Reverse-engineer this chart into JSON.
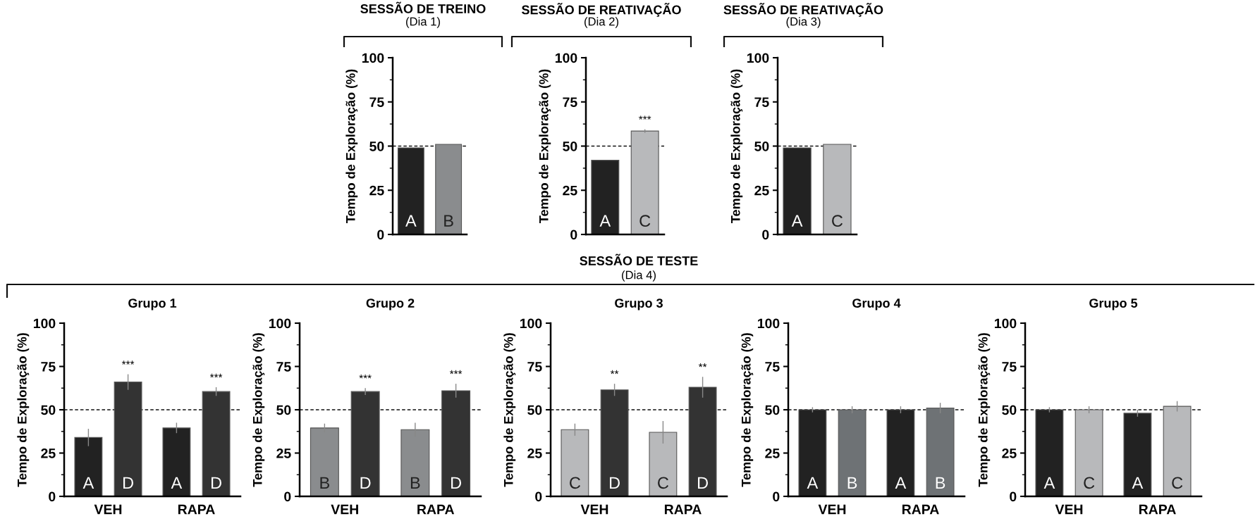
{
  "chart_data": [
    {
      "type": "bar",
      "title": "SESSÃO DE TREINO",
      "subtitle": "(Dia 1)",
      "ylabel": "Tempo de Exploração (%)",
      "categories": [
        null
      ],
      "series": [
        {
          "name": "A",
          "color": "#222222",
          "values": [
            49
          ]
        },
        {
          "name": "B",
          "color": "#8a8c8e",
          "values": [
            51
          ]
        }
      ],
      "ylim": [
        0,
        100
      ],
      "yticks": [
        0,
        25,
        50,
        75,
        100
      ],
      "ref_lines": [
        {
          "axis": "y",
          "value": 50,
          "line_style": "dashed"
        }
      ]
    },
    {
      "type": "bar",
      "title": "SESSÃO DE REATIVAÇÃO",
      "subtitle": "(Dia 2)",
      "ylabel": "Tempo de Exploração (%)",
      "categories": [
        null
      ],
      "series": [
        {
          "name": "A",
          "color": "#222222",
          "values": [
            42
          ]
        },
        {
          "name": "C",
          "color": "#b8b9bb",
          "values": [
            58.5
          ],
          "errors": [
            1
          ],
          "value_labels": [
            "***"
          ]
        }
      ],
      "ylim": [
        0,
        100
      ],
      "yticks": [
        0,
        25,
        50,
        75,
        100
      ],
      "ref_lines": [
        {
          "axis": "y",
          "value": 50,
          "line_style": "dashed"
        }
      ]
    },
    {
      "type": "bar",
      "title": "SESSÃO DE REATIVAÇÃO",
      "subtitle": "(Dia 3)",
      "ylabel": "Tempo de Exploração (%)",
      "categories": [
        null
      ],
      "series": [
        {
          "name": "A",
          "color": "#222222",
          "values": [
            49
          ]
        },
        {
          "name": "C",
          "color": "#b8b9bb",
          "values": [
            51
          ]
        }
      ],
      "ylim": [
        0,
        100
      ],
      "yticks": [
        0,
        25,
        50,
        75,
        100
      ],
      "ref_lines": [
        {
          "axis": "y",
          "value": 50,
          "line_style": "dashed"
        }
      ]
    },
    {
      "type": "bar",
      "title": "Grupo 1",
      "ylabel": "Tempo de Exploração (%)",
      "categories": [
        "VEH",
        "RAPA"
      ],
      "series": [
        {
          "name": "A",
          "color": "#222222",
          "values": [
            34,
            39.5
          ],
          "errors": [
            5,
            3
          ]
        },
        {
          "name": "D",
          "color": "#333333",
          "values": [
            66,
            60.5
          ],
          "errors": [
            4.5,
            2.5
          ],
          "value_labels": [
            "***",
            "***"
          ]
        }
      ],
      "ylim": [
        0,
        100
      ],
      "yticks": [
        0,
        25,
        50,
        75,
        100
      ],
      "ref_lines": [
        {
          "axis": "y",
          "value": 50,
          "line_style": "dashed"
        }
      ]
    },
    {
      "type": "bar",
      "title": "Grupo 2",
      "ylabel": "Tempo de Exploração (%)",
      "categories": [
        "VEH",
        "RAPA"
      ],
      "series": [
        {
          "name": "B",
          "color": "#8a8c8e",
          "values": [
            39.5,
            38.5
          ],
          "errors": [
            2.5,
            4
          ]
        },
        {
          "name": "D",
          "color": "#333333",
          "values": [
            60.5,
            61
          ],
          "errors": [
            2,
            4
          ],
          "value_labels": [
            "***",
            "***"
          ]
        }
      ],
      "ylim": [
        0,
        100
      ],
      "yticks": [
        0,
        25,
        50,
        75,
        100
      ],
      "ref_lines": [
        {
          "axis": "y",
          "value": 50,
          "line_style": "dashed"
        }
      ]
    },
    {
      "type": "bar",
      "title": "Grupo 3",
      "ylabel": "Tempo de Exploração (%)",
      "categories": [
        "VEH",
        "RAPA"
      ],
      "series": [
        {
          "name": "C",
          "color": "#b8b9bb",
          "values": [
            38.5,
            37
          ],
          "errors": [
            3.5,
            6.5
          ]
        },
        {
          "name": "D",
          "color": "#333333",
          "values": [
            61.5,
            63
          ],
          "errors": [
            3.5,
            6
          ],
          "value_labels": [
            "**",
            "**"
          ]
        }
      ],
      "ylim": [
        0,
        100
      ],
      "yticks": [
        0,
        25,
        50,
        75,
        100
      ],
      "ref_lines": [
        {
          "axis": "y",
          "value": 50,
          "line_style": "dashed"
        }
      ],
      "annotations": [
        "SESSÃO DE TESTE",
        "(Dia 4)"
      ]
    },
    {
      "type": "bar",
      "title": "Grupo 4",
      "ylabel": "Tempo de Exploração (%)",
      "categories": [
        "VEH",
        "RAPA"
      ],
      "series": [
        {
          "name": "A",
          "color": "#222222",
          "values": [
            50,
            50
          ],
          "errors": [
            1.5,
            2
          ]
        },
        {
          "name": "B",
          "color": "#6e7275",
          "values": [
            50,
            51
          ],
          "errors": [
            2,
            3
          ]
        }
      ],
      "ylim": [
        0,
        100
      ],
      "yticks": [
        0,
        25,
        50,
        75,
        100
      ],
      "ref_lines": [
        {
          "axis": "y",
          "value": 50,
          "line_style": "dashed"
        }
      ]
    },
    {
      "type": "bar",
      "title": "Grupo 5",
      "ylabel": "Tempo de Exploração (%)",
      "categories": [
        "VEH",
        "RAPA"
      ],
      "series": [
        {
          "name": "A",
          "color": "#222222",
          "values": [
            50,
            48
          ],
          "errors": [
            1.5,
            2
          ]
        },
        {
          "name": "C",
          "color": "#b8b9bb",
          "values": [
            50,
            52
          ],
          "errors": [
            2,
            3
          ]
        }
      ],
      "ylim": [
        0,
        100
      ],
      "yticks": [
        0,
        25,
        50,
        75,
        100
      ],
      "ref_lines": [
        {
          "axis": "y",
          "value": 50,
          "line_style": "dashed"
        }
      ]
    }
  ]
}
